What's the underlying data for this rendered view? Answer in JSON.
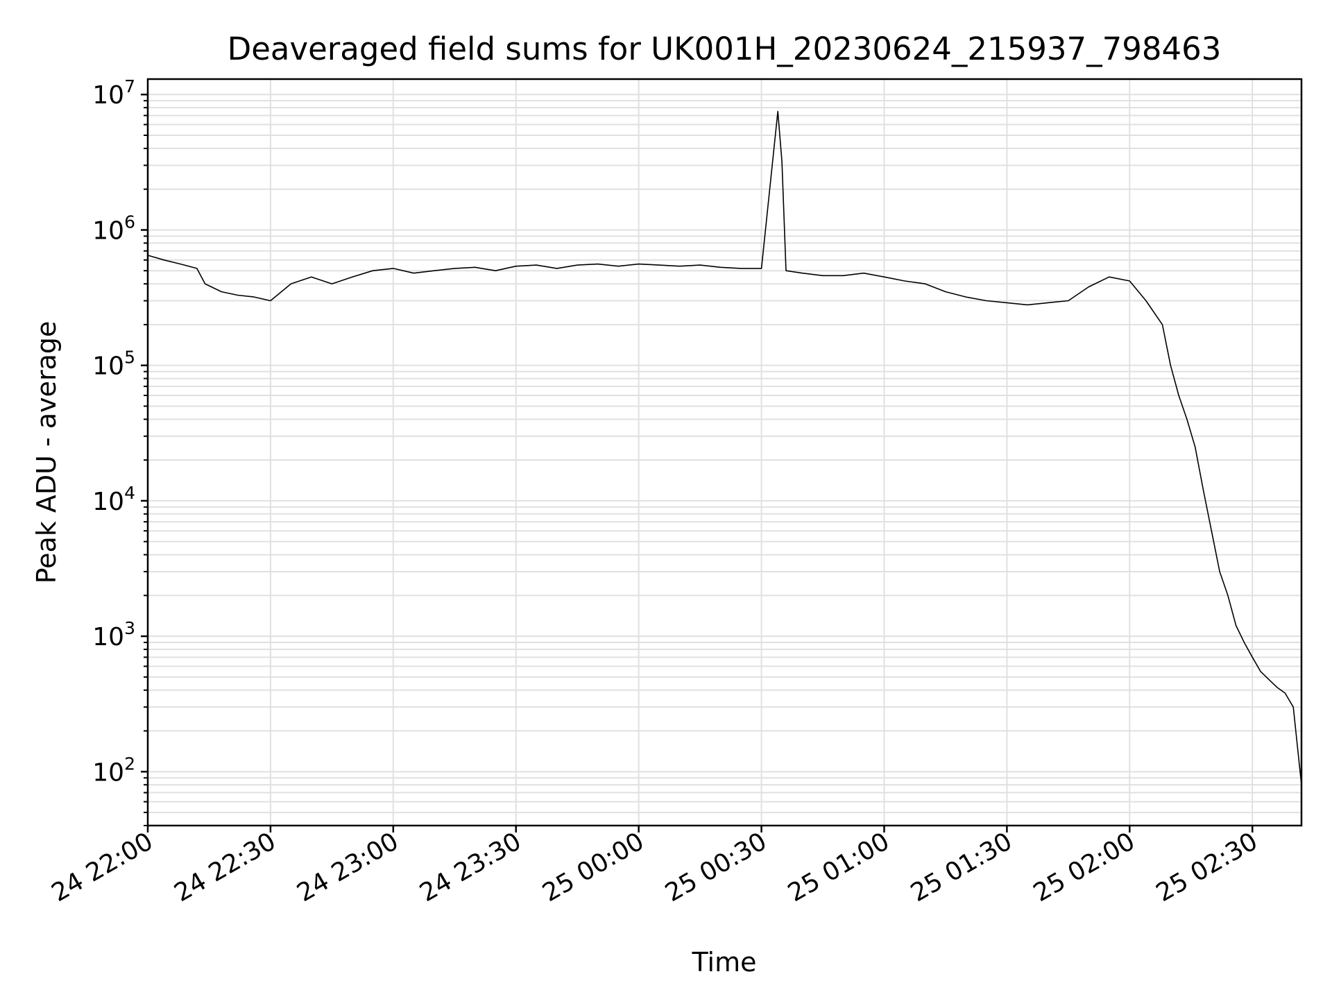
{
  "chart_data": {
    "type": "line",
    "title": "Deaveraged field sums for UK001H_20230624_215937_798463",
    "xlabel": "Time",
    "ylabel": "Peak ADU - average",
    "yscale": "log",
    "ylim": [
      40,
      13000000
    ],
    "xlim": [
      "2023-06-24 22:00",
      "2023-06-25 02:42"
    ],
    "grid": true,
    "line_color": "#000000",
    "grid_color": "#e0e0e0",
    "x_ticks": [
      "24 22:00",
      "24 22:30",
      "24 23:00",
      "24 23:30",
      "25 00:00",
      "25 00:30",
      "25 01:00",
      "25 01:30",
      "25 02:00",
      "25 02:30"
    ],
    "y_ticks": [
      {
        "value": 100,
        "base": "10",
        "exp": "2"
      },
      {
        "value": 1000,
        "base": "10",
        "exp": "3"
      },
      {
        "value": 10000,
        "base": "10",
        "exp": "4"
      },
      {
        "value": 100000,
        "base": "10",
        "exp": "5"
      },
      {
        "value": 1000000,
        "base": "10",
        "exp": "6"
      },
      {
        "value": 10000000,
        "base": "10",
        "exp": "7"
      }
    ],
    "series": [
      {
        "values": [
          [
            "2023-06-24 22:00",
            650000
          ],
          [
            "2023-06-24 22:04",
            600000
          ],
          [
            "2023-06-24 22:08",
            560000
          ],
          [
            "2023-06-24 22:12",
            520000
          ],
          [
            "2023-06-24 22:14",
            400000
          ],
          [
            "2023-06-24 22:18",
            350000
          ],
          [
            "2023-06-24 22:22",
            330000
          ],
          [
            "2023-06-24 22:26",
            320000
          ],
          [
            "2023-06-24 22:30",
            300000
          ],
          [
            "2023-06-24 22:35",
            400000
          ],
          [
            "2023-06-24 22:40",
            450000
          ],
          [
            "2023-06-24 22:45",
            400000
          ],
          [
            "2023-06-24 22:50",
            450000
          ],
          [
            "2023-06-24 22:55",
            500000
          ],
          [
            "2023-06-24 23:00",
            520000
          ],
          [
            "2023-06-24 23:05",
            480000
          ],
          [
            "2023-06-24 23:10",
            500000
          ],
          [
            "2023-06-24 23:15",
            520000
          ],
          [
            "2023-06-24 23:20",
            530000
          ],
          [
            "2023-06-24 23:25",
            500000
          ],
          [
            "2023-06-24 23:30",
            540000
          ],
          [
            "2023-06-24 23:35",
            550000
          ],
          [
            "2023-06-24 23:40",
            520000
          ],
          [
            "2023-06-24 23:45",
            550000
          ],
          [
            "2023-06-24 23:50",
            560000
          ],
          [
            "2023-06-24 23:55",
            540000
          ],
          [
            "2023-06-25 00:00",
            560000
          ],
          [
            "2023-06-25 00:05",
            550000
          ],
          [
            "2023-06-25 00:10",
            540000
          ],
          [
            "2023-06-25 00:15",
            550000
          ],
          [
            "2023-06-25 00:20",
            530000
          ],
          [
            "2023-06-25 00:25",
            520000
          ],
          [
            "2023-06-25 00:30",
            520000
          ],
          [
            "2023-06-25 00:34",
            7500000
          ],
          [
            "2023-06-25 00:35",
            3200000
          ],
          [
            "2023-06-25 00:36",
            500000
          ],
          [
            "2023-06-25 00:40",
            480000
          ],
          [
            "2023-06-25 00:45",
            460000
          ],
          [
            "2023-06-25 00:50",
            460000
          ],
          [
            "2023-06-25 00:55",
            480000
          ],
          [
            "2023-06-25 01:00",
            450000
          ],
          [
            "2023-06-25 01:05",
            420000
          ],
          [
            "2023-06-25 01:10",
            400000
          ],
          [
            "2023-06-25 01:15",
            350000
          ],
          [
            "2023-06-25 01:20",
            320000
          ],
          [
            "2023-06-25 01:25",
            300000
          ],
          [
            "2023-06-25 01:30",
            290000
          ],
          [
            "2023-06-25 01:35",
            280000
          ],
          [
            "2023-06-25 01:40",
            290000
          ],
          [
            "2023-06-25 01:45",
            300000
          ],
          [
            "2023-06-25 01:50",
            380000
          ],
          [
            "2023-06-25 01:55",
            450000
          ],
          [
            "2023-06-25 02:00",
            420000
          ],
          [
            "2023-06-25 02:04",
            300000
          ],
          [
            "2023-06-25 02:08",
            200000
          ],
          [
            "2023-06-25 02:10",
            100000
          ],
          [
            "2023-06-25 02:12",
            60000
          ],
          [
            "2023-06-25 02:14",
            40000
          ],
          [
            "2023-06-25 02:16",
            25000
          ],
          [
            "2023-06-25 02:18",
            12000
          ],
          [
            "2023-06-25 02:20",
            6000
          ],
          [
            "2023-06-25 02:22",
            3000
          ],
          [
            "2023-06-25 02:24",
            2000
          ],
          [
            "2023-06-25 02:26",
            1200
          ],
          [
            "2023-06-25 02:28",
            900
          ],
          [
            "2023-06-25 02:30",
            700
          ],
          [
            "2023-06-25 02:32",
            550
          ],
          [
            "2023-06-25 02:34",
            480
          ],
          [
            "2023-06-25 02:36",
            420
          ],
          [
            "2023-06-25 02:38",
            380
          ],
          [
            "2023-06-25 02:40",
            300
          ],
          [
            "2023-06-25 02:42",
            80
          ]
        ]
      }
    ]
  }
}
